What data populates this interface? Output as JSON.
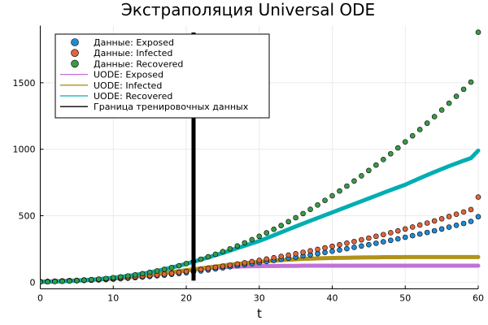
{
  "chart_data": {
    "type": "scatter",
    "title": "Экстраполяция Universal ODE",
    "xlabel": "t",
    "ylabel": "",
    "xlim": [
      0,
      60
    ],
    "ylim": [
      -50,
      1930
    ],
    "grid": true,
    "legend_position": "top-left",
    "x_ticks": [
      0,
      10,
      20,
      30,
      40,
      50,
      60
    ],
    "y_ticks": [
      0,
      500,
      1000,
      1500
    ],
    "x_tick_labels": [
      "0",
      "10",
      "20",
      "30",
      "40",
      "50",
      "60"
    ],
    "y_tick_labels": [
      "0",
      "500",
      "1000",
      "1500"
    ],
    "training_boundary_x": 21,
    "t": [
      0,
      1,
      2,
      3,
      4,
      5,
      6,
      7,
      8,
      9,
      10,
      11,
      12,
      13,
      14,
      15,
      16,
      17,
      18,
      19,
      20,
      21,
      22,
      23,
      24,
      25,
      26,
      27,
      28,
      29,
      30,
      31,
      32,
      33,
      34,
      35,
      36,
      37,
      38,
      39,
      40,
      41,
      42,
      43,
      44,
      45,
      46,
      47,
      48,
      49,
      50,
      51,
      52,
      53,
      54,
      55,
      56,
      57,
      58,
      59,
      60
    ],
    "series": [
      {
        "name": "Данные: Exposed",
        "kind": "scatter",
        "color": "#1f8bd6",
        "values": [
          3,
          4,
          6,
          7,
          9,
          11,
          13,
          15,
          17,
          20,
          23,
          26,
          30,
          34,
          38,
          43,
          48,
          53,
          59,
          65,
          71,
          78,
          85,
          92,
          100,
          108,
          116,
          124,
          132,
          140,
          148,
          156,
          164,
          172,
          181,
          189,
          198,
          206,
          215,
          224,
          233,
          242,
          252,
          262,
          272,
          282,
          293,
          304,
          315,
          326,
          338,
          350,
          362,
          374,
          387,
          400,
          414,
          428,
          442,
          457,
          493
        ]
      },
      {
        "name": "Данные: Infected",
        "kind": "scatter",
        "color": "#e0643c",
        "values": [
          5,
          6,
          8,
          10,
          12,
          14,
          17,
          19,
          22,
          25,
          28,
          32,
          36,
          40,
          45,
          50,
          55,
          61,
          67,
          74,
          81,
          88,
          96,
          104,
          112,
          120,
          128,
          137,
          146,
          155,
          164,
          174,
          184,
          194,
          204,
          214,
          225,
          236,
          247,
          258,
          270,
          282,
          294,
          306,
          319,
          332,
          345,
          358,
          372,
          386,
          400,
          415,
          430,
          445,
          461,
          477,
          494,
          511,
          528,
          546,
          640
        ]
      },
      {
        "name": "Данные: Recovered",
        "kind": "scatter",
        "color": "#3a9a48",
        "values": [
          2,
          3,
          5,
          7,
          9,
          12,
          15,
          19,
          23,
          28,
          34,
          40,
          47,
          55,
          64,
          74,
          85,
          97,
          110,
          124,
          140,
          156,
          173,
          191,
          210,
          230,
          251,
          273,
          296,
          320,
          345,
          371,
          398,
          426,
          455,
          485,
          516,
          548,
          581,
          615,
          650,
          686,
          723,
          761,
          800,
          840,
          881,
          923,
          966,
          1010,
          1055,
          1101,
          1148,
          1196,
          1245,
          1295,
          1346,
          1398,
          1451,
          1505,
          1880
        ]
      },
      {
        "name": "UODE: Exposed",
        "kind": "line",
        "color": "#c071d6",
        "values": [
          3,
          4,
          6,
          8,
          10,
          12,
          14,
          17,
          20,
          23,
          27,
          31,
          36,
          41,
          47,
          53,
          60,
          67,
          74,
          81,
          88,
          95,
          101,
          106,
          110,
          113,
          116,
          118,
          119,
          120,
          121,
          122,
          122,
          123,
          123,
          123,
          124,
          124,
          124,
          124,
          124,
          124,
          124,
          124,
          124,
          124,
          124,
          124,
          124,
          124,
          124,
          124,
          124,
          124,
          124,
          124,
          124,
          124,
          124,
          124,
          124
        ]
      },
      {
        "name": "UODE: Infected",
        "kind": "line",
        "color": "#b0921a",
        "values": [
          4,
          5,
          7,
          9,
          11,
          13,
          16,
          19,
          22,
          25,
          29,
          34,
          39,
          44,
          50,
          56,
          62,
          69,
          76,
          83,
          90,
          97,
          104,
          111,
          118,
          125,
          131,
          137,
          143,
          148,
          153,
          158,
          162,
          166,
          169,
          172,
          175,
          177,
          179,
          181,
          182,
          183,
          184,
          185,
          186,
          187,
          187,
          188,
          188,
          188,
          189,
          189,
          189,
          189,
          189,
          189,
          189,
          189,
          189,
          189,
          189
        ]
      },
      {
        "name": "UODE: Recovered",
        "kind": "line",
        "color": "#00aeb2",
        "values": [
          2,
          3,
          5,
          7,
          9,
          12,
          15,
          19,
          23,
          28,
          34,
          40,
          47,
          55,
          64,
          74,
          85,
          97,
          110,
          124,
          139,
          154,
          170,
          186,
          203,
          220,
          238,
          256,
          274,
          292,
          310,
          331,
          353,
          375,
          397,
          419,
          441,
          462,
          483,
          504,
          525,
          546,
          567,
          588,
          609,
          630,
          651,
          672,
          693,
          713,
          733,
          758,
          782,
          806,
          829,
          851,
          873,
          894,
          914,
          933,
          990
        ]
      },
      {
        "name": "Граница тренировочных данных",
        "kind": "vline",
        "color": "#000000"
      }
    ]
  }
}
